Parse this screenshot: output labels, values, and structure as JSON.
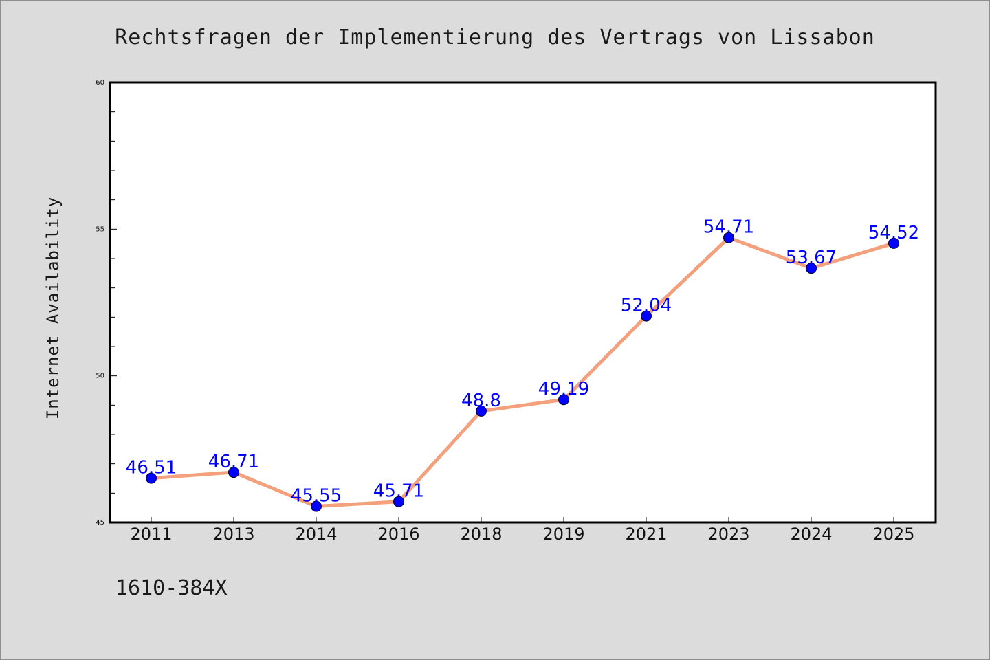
{
  "chart_data": {
    "type": "line",
    "title": "Rechtsfragen der Implementierung des Vertrags von Lissabon",
    "xlabel": "",
    "ylabel": "Internet Availability",
    "categories": [
      "2011",
      "2013",
      "2014",
      "2016",
      "2018",
      "2019",
      "2021",
      "2023",
      "2024",
      "2025"
    ],
    "series": [
      {
        "values": [
          46.51,
          46.71,
          45.55,
          45.71,
          48.8,
          49.19,
          52.04,
          54.71,
          53.67,
          54.52
        ],
        "labels": [
          "46.51",
          "46.71",
          "45.55",
          "45.71",
          "48.8",
          "49.19",
          "52.04",
          "54.71",
          "53.67",
          "54.52"
        ],
        "line_color": "#f4a07c",
        "marker_color": "#0000ff",
        "label_color": "#0000ff"
      }
    ],
    "ylim": [
      45,
      60
    ],
    "yticks": [
      "45",
      "50",
      "55",
      "60"
    ],
    "grid": false,
    "legend": "none"
  },
  "footer": {
    "text": "1610-384X"
  },
  "colors": {
    "background": "#dcdcdc",
    "plot_background": "#ffffff",
    "axis": "#000000"
  }
}
